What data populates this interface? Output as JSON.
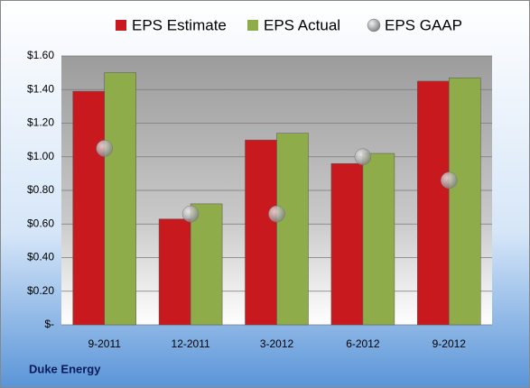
{
  "chart_data": {
    "type": "bar",
    "categories": [
      "9-2011",
      "12-2011",
      "3-2012",
      "6-2012",
      "9-2012"
    ],
    "series": [
      {
        "name": "EPS Estimate",
        "color": "#c8191f",
        "values": [
          1.39,
          0.63,
          1.1,
          0.96,
          1.45
        ]
      },
      {
        "name": "EPS Actual",
        "color": "#8fac4b",
        "values": [
          1.5,
          0.72,
          1.14,
          1.02,
          1.47
        ]
      },
      {
        "name": "EPS GAAP",
        "color": "#a8a8a8",
        "type": "scatter",
        "values": [
          1.05,
          0.66,
          0.66,
          1.0,
          0.86
        ]
      }
    ],
    "ylim": [
      0,
      1.6
    ],
    "yticks": [
      {
        "value": 0,
        "label": "$-"
      },
      {
        "value": 0.2,
        "label": "$0.20"
      },
      {
        "value": 0.4,
        "label": "$0.40"
      },
      {
        "value": 0.6,
        "label": "$0.60"
      },
      {
        "value": 0.8,
        "label": "$0.80"
      },
      {
        "value": 1.0,
        "label": "$1.00"
      },
      {
        "value": 1.2,
        "label": "$1.20"
      },
      {
        "value": 1.4,
        "label": "$1.40"
      },
      {
        "value": 1.6,
        "label": "$1.60"
      }
    ],
    "grid": true,
    "footer": "Duke Energy"
  }
}
